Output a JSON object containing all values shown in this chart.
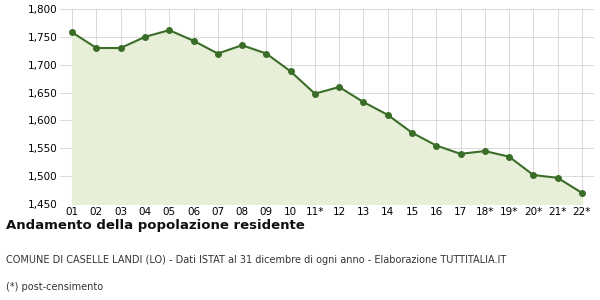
{
  "x_labels": [
    "01",
    "02",
    "03",
    "04",
    "05",
    "06",
    "07",
    "08",
    "09",
    "10",
    "11*",
    "12",
    "13",
    "14",
    "15",
    "16",
    "17",
    "18*",
    "19*",
    "20*",
    "21*",
    "22*"
  ],
  "values": [
    1758,
    1730,
    1730,
    1750,
    1762,
    1743,
    1720,
    1735,
    1720,
    1688,
    1648,
    1660,
    1633,
    1610,
    1578,
    1555,
    1540,
    1545,
    1535,
    1502,
    1497,
    1470
  ],
  "ylim": [
    1450,
    1800
  ],
  "yticks": [
    1450,
    1500,
    1550,
    1600,
    1650,
    1700,
    1750,
    1800
  ],
  "line_color": "#3a6e28",
  "fill_color": "#e8efd8",
  "marker_color": "#3a6e28",
  "bg_color": "#ffffff",
  "grid_color": "#cccccc",
  "title": "Andamento della popolazione residente",
  "subtitle": "COMUNE DI CASELLE LANDI (LO) - Dati ISTAT al 31 dicembre di ogni anno - Elaborazione TUTTITALIA.IT",
  "footnote": "(*) post-censimento",
  "title_fontsize": 9.5,
  "subtitle_fontsize": 7.0,
  "footnote_fontsize": 7.0,
  "tick_fontsize": 7.5
}
